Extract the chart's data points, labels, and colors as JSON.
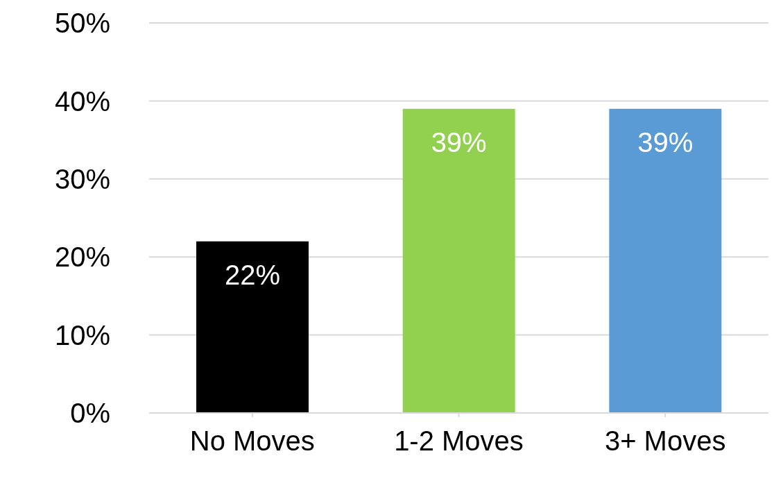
{
  "chart_data": {
    "type": "bar",
    "categories": [
      "No Moves",
      "1-2 Moves",
      "3+ Moves"
    ],
    "values": [
      22,
      39,
      39
    ],
    "colors": [
      "#000000",
      "#92d050",
      "#5b9bd5"
    ],
    "value_labels": [
      "22%",
      "39%",
      "39%"
    ],
    "ylim": [
      0,
      50
    ],
    "yticks": [
      {
        "value": 0,
        "label": "0%"
      },
      {
        "value": 10,
        "label": "10%"
      },
      {
        "value": 20,
        "label": "20%"
      },
      {
        "value": 30,
        "label": "30%"
      },
      {
        "value": 40,
        "label": "40%"
      },
      {
        "value": 50,
        "label": "50%"
      }
    ],
    "grid": "y"
  }
}
